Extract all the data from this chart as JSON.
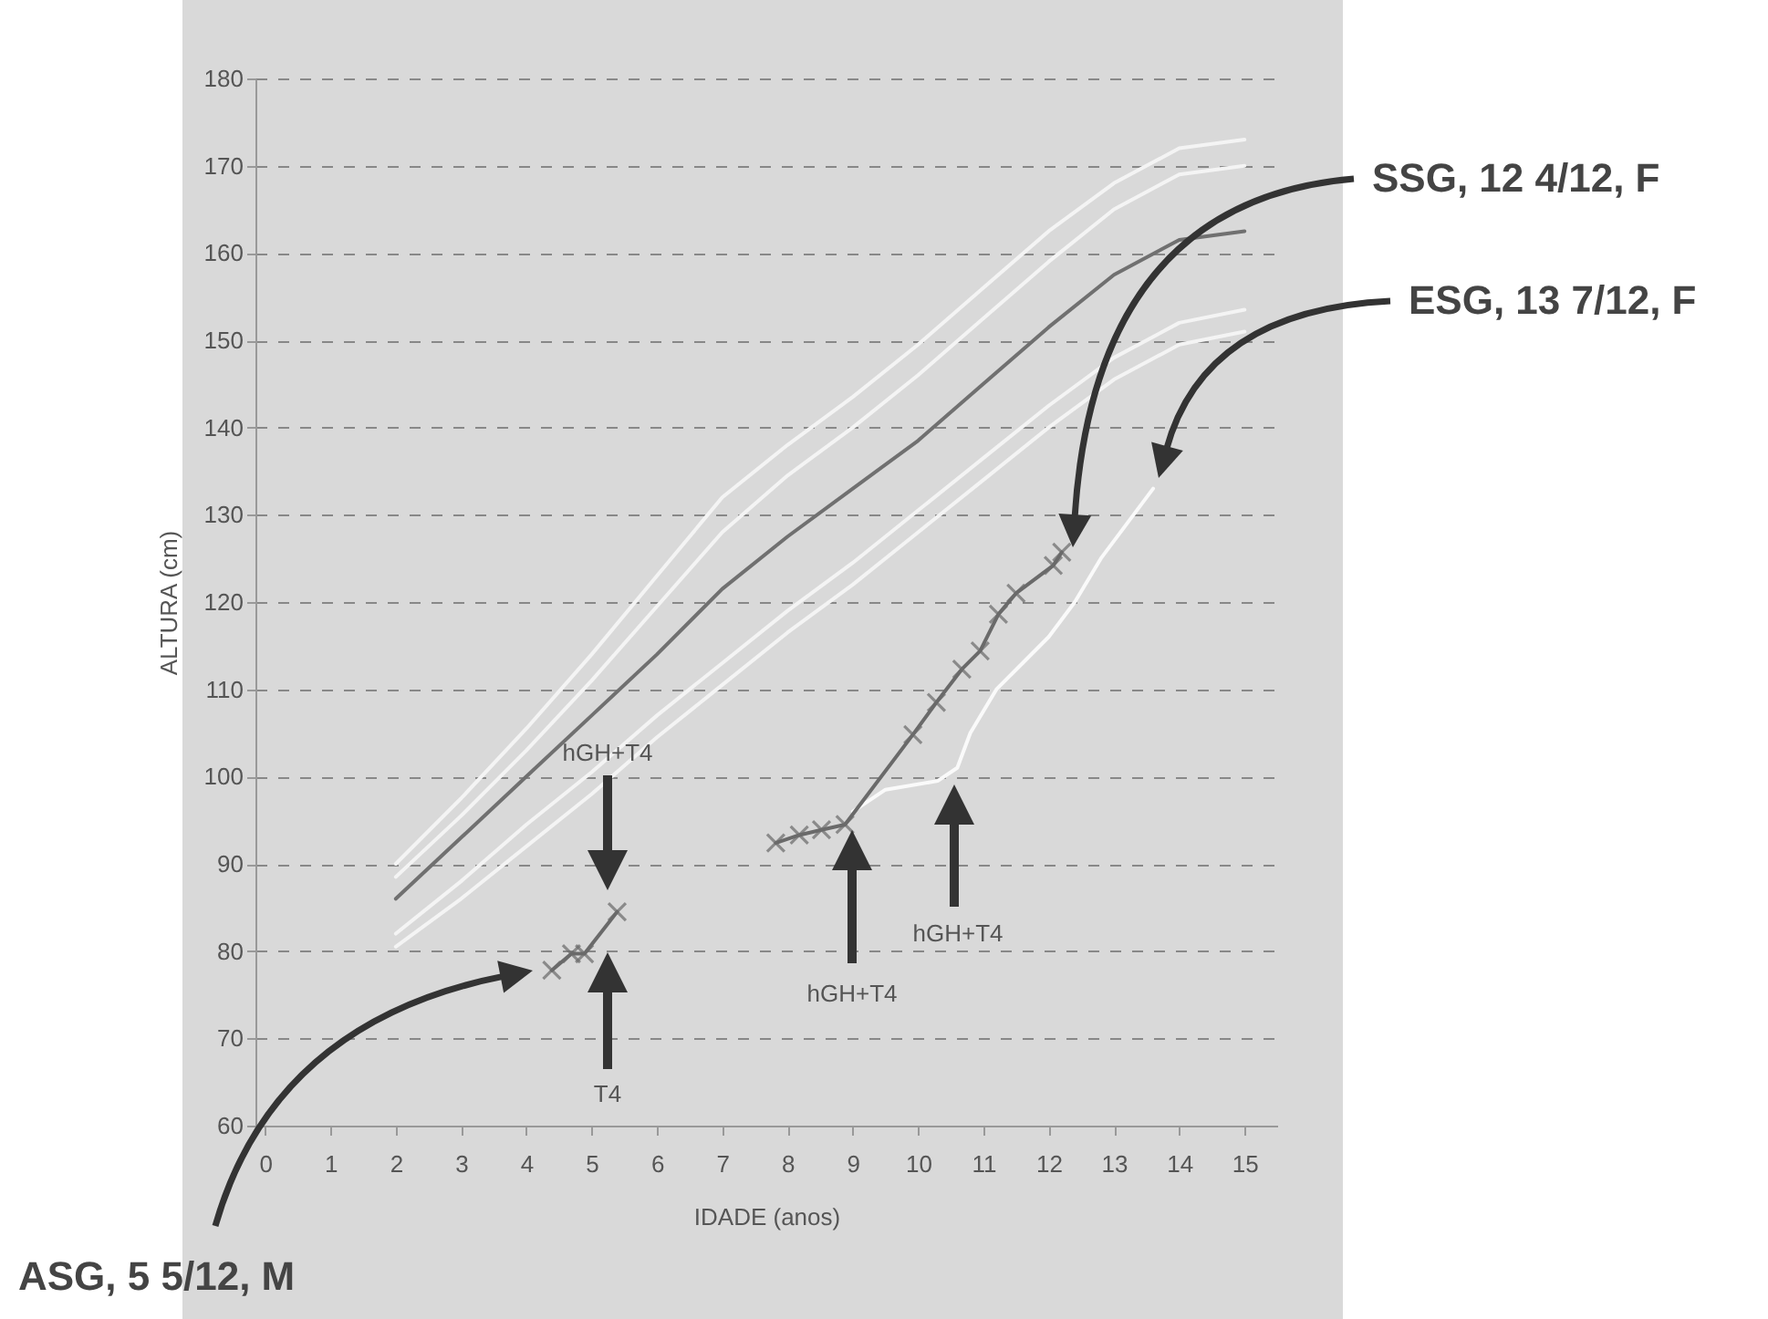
{
  "chart_data": {
    "type": "line",
    "xlabel": "IDADE (anos)",
    "ylabel": "ALTURA (cm)",
    "xlim": [
      -0.15,
      15.5
    ],
    "xticks": [
      0,
      1,
      2,
      3,
      4,
      5,
      6,
      7,
      8,
      9,
      10,
      11,
      12,
      13,
      14,
      15
    ],
    "ylim": [
      60,
      180
    ],
    "yticks": [
      60,
      70,
      80,
      90,
      100,
      110,
      120,
      130,
      140,
      150,
      160,
      170,
      180
    ],
    "grid": "y",
    "series": [
      {
        "color": "#f4f4f4",
        "marker": "none",
        "x": [
          2,
          3,
          4,
          5,
          6,
          7,
          8,
          9,
          10,
          11,
          12,
          13,
          14,
          15
        ],
        "values": [
          90,
          97.5,
          105.5,
          114,
          123,
          132,
          138,
          143.5,
          149.5,
          156,
          162.5,
          168,
          172,
          173
        ]
      },
      {
        "color": "#f4f4f4",
        "marker": "none",
        "x": [
          2,
          3,
          4,
          5,
          6,
          7,
          8,
          9,
          10,
          11,
          12,
          13,
          14,
          15
        ],
        "values": [
          88.5,
          95.5,
          103,
          111,
          119.5,
          128,
          134.5,
          140,
          146,
          152.5,
          159,
          165,
          169,
          170
        ]
      },
      {
        "color": "#f4f4f4",
        "marker": "none",
        "x": [
          2,
          3,
          4,
          5,
          6,
          7,
          8,
          9,
          10,
          11,
          12,
          13,
          14,
          15
        ],
        "values": [
          82,
          88,
          94.5,
          100.5,
          107,
          113,
          119,
          124.5,
          130.5,
          136.5,
          142.5,
          148,
          152,
          153.5
        ]
      },
      {
        "color": "#f4f4f4",
        "marker": "none",
        "x": [
          2,
          3,
          4,
          5,
          6,
          7,
          8,
          9,
          10,
          11,
          12,
          13,
          14,
          15
        ],
        "values": [
          80.5,
          86,
          92,
          98,
          104.5,
          110.5,
          116.5,
          122,
          128,
          134,
          140,
          145.5,
          149.5,
          151
        ]
      },
      {
        "color": "#707070",
        "marker": "none",
        "x": [
          2,
          3,
          4,
          5,
          6,
          7,
          8,
          9,
          10,
          11,
          12,
          13,
          14,
          15
        ],
        "values": [
          86,
          93,
          100,
          107,
          114,
          121.5,
          127.5,
          133,
          138.5,
          145,
          151.5,
          157.5,
          161.5,
          162.5
        ]
      },
      {
        "color": "#fafafa",
        "marker": "none",
        "x": [
          9,
          9.5,
          10.3,
          10.6,
          10.8,
          11.2,
          11.6,
          12,
          12.4,
          12.8,
          13.2,
          13.6
        ],
        "values": [
          96,
          98.5,
          99.5,
          101,
          105,
          110,
          113,
          116,
          120,
          125,
          129,
          133
        ]
      },
      {
        "color": "#6a6a6a",
        "marker": "cross",
        "x": [
          4.39,
          4.69,
          4.89,
          5.39
        ],
        "values": [
          77.8,
          79.7,
          79.7,
          84.5
        ]
      },
      {
        "color": "#6a6a6a",
        "marker": "cross",
        "x": [
          7.82,
          8.18,
          8.52,
          8.88,
          9.92,
          10.28,
          10.67,
          10.95,
          11.23,
          11.5,
          12.07,
          12.2
        ],
        "values": [
          92.4,
          93.3,
          93.9,
          94.5,
          104.8,
          108.5,
          112.3,
          114.4,
          118.6,
          121,
          124.2,
          125.7
        ]
      }
    ],
    "annotations": [
      "hGH+T4",
      "T4",
      "hGH+T4",
      "hGH+T4",
      "ASG, 5 5/12, M",
      "SSG, 12 4/12, F",
      "ESG, 13 7/12, F"
    ]
  }
}
